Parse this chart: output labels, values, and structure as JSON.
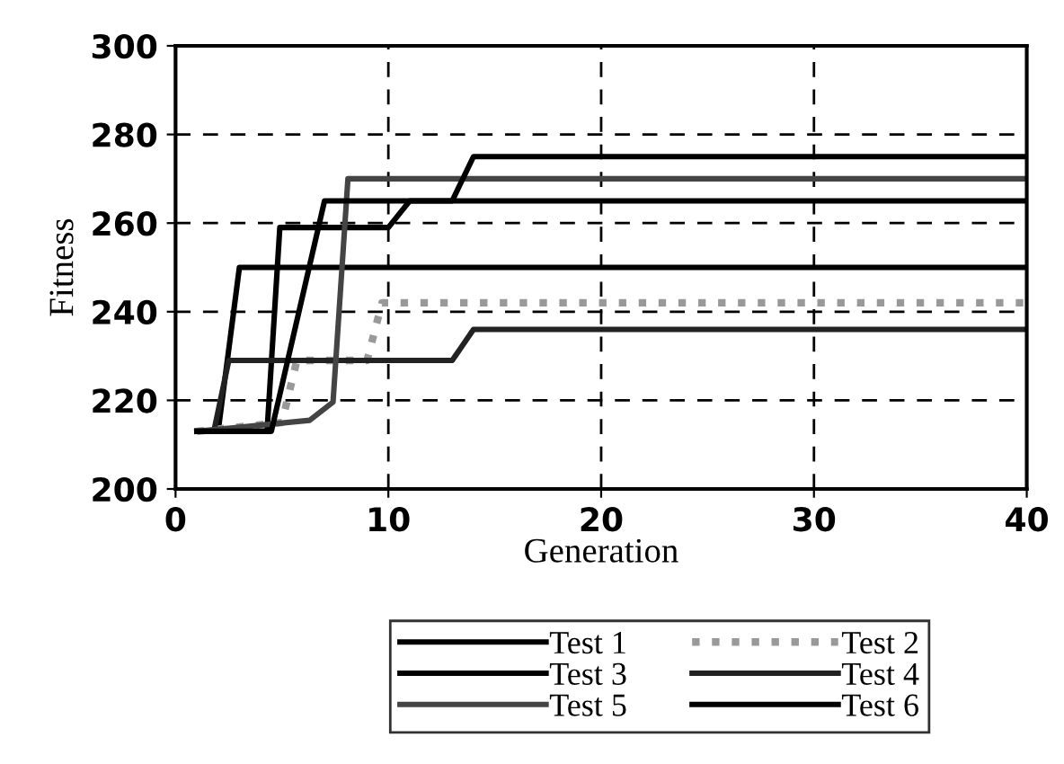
{
  "chart_data": {
    "type": "line",
    "xlabel": "Generation",
    "ylabel": "Fitness",
    "xlim": [
      0,
      40
    ],
    "xticks": [
      0,
      10,
      20,
      30,
      40
    ],
    "ylim": [
      200,
      300
    ],
    "yticks": [
      200,
      220,
      240,
      260,
      280,
      300
    ],
    "grid": true,
    "legend": "bottom",
    "marker": "none",
    "series": [
      {
        "name": "Test 1",
        "color": "#000000",
        "line_style": "solid",
        "x": [
          1,
          2,
          3,
          40
        ],
        "values": [
          213,
          213,
          250,
          250
        ]
      },
      {
        "name": "Test 2",
        "color": "#999999",
        "line_style": "dotted",
        "x": [
          1,
          5,
          5.7,
          9,
          9.7,
          40
        ],
        "values": [
          213,
          215,
          229,
          229,
          242,
          242
        ]
      },
      {
        "name": "Test 3",
        "color": "#000000",
        "line_style": "solid",
        "x": [
          1,
          4.3,
          4.9,
          10,
          11,
          40
        ],
        "values": [
          213,
          213,
          259,
          259,
          265,
          265
        ]
      },
      {
        "name": "Test 4",
        "color": "#222222",
        "line_style": "solid",
        "x": [
          1,
          1.8,
          2.5,
          13,
          14,
          40
        ],
        "values": [
          213,
          213,
          229,
          229,
          236,
          236
        ]
      },
      {
        "name": "Test 5",
        "color": "#444444",
        "line_style": "solid",
        "x": [
          1,
          6.3,
          7.4,
          8.1,
          40
        ],
        "values": [
          213,
          215.5,
          219.6,
          270,
          270
        ]
      },
      {
        "name": "Test 6",
        "color": "#000000",
        "line_style": "solid",
        "x": [
          1,
          4.5,
          7,
          13,
          14,
          40
        ],
        "values": [
          213,
          213,
          265,
          265,
          275,
          275
        ]
      }
    ]
  }
}
